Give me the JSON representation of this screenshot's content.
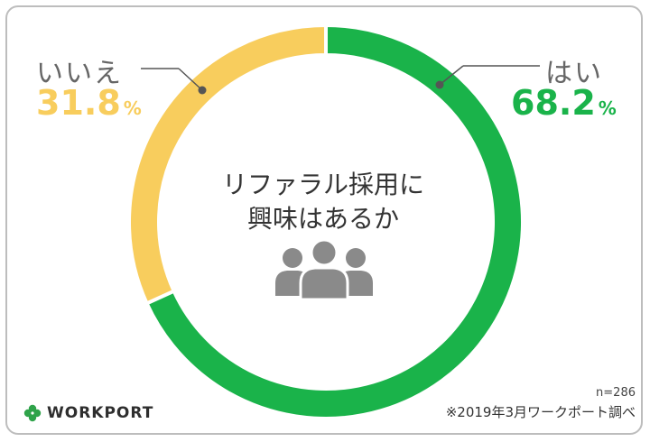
{
  "chart_data": {
    "type": "pie",
    "title": "リファラル採用に\n興味はあるか",
    "title_lines": [
      "リファラル採用に",
      "興味はあるか"
    ],
    "slices": [
      {
        "label": "はい",
        "value": 68.2,
        "unit": "%",
        "color": "#1ab34a"
      },
      {
        "label": "いいえ",
        "value": 31.8,
        "unit": "%",
        "color": "#f8cd5d"
      }
    ]
  },
  "footer": {
    "sample": "n=286",
    "source": "※2019年3月ワークポート調べ",
    "logo_text": "WORKPORT"
  },
  "icons": {
    "people": "people-group-icon",
    "logo": "clover-icon"
  },
  "colors": {
    "yes": "#1ab34a",
    "no": "#f8cd5d",
    "leader": "#555555",
    "icon": "#8a8a8a",
    "logo": "#2fa34a"
  }
}
